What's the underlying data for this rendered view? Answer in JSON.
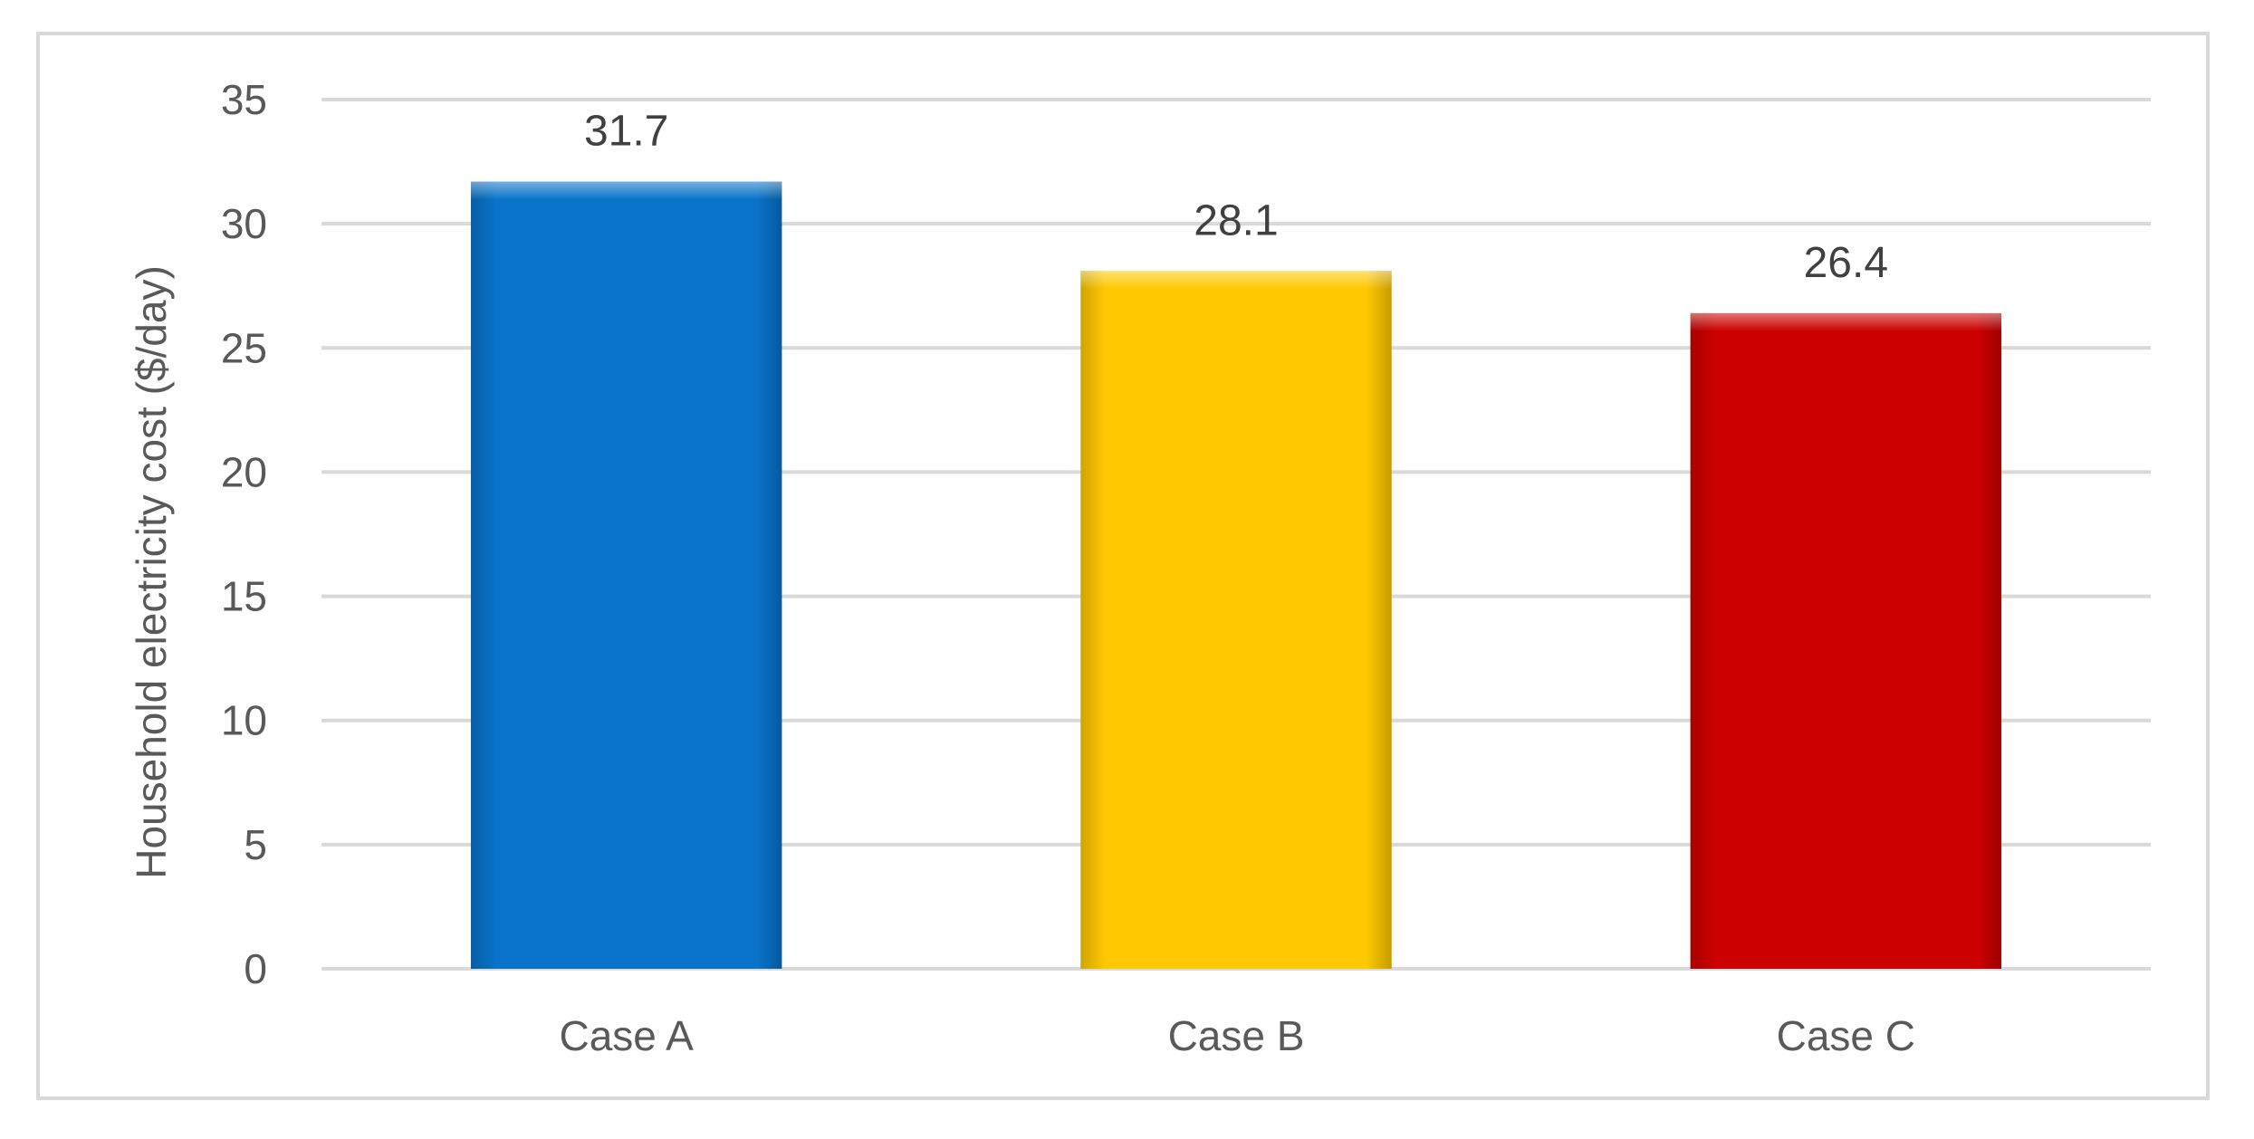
{
  "chart_data": {
    "type": "bar",
    "categories": [
      "Case A",
      "Case B",
      "Case C"
    ],
    "values": [
      31.7,
      28.1,
      26.4
    ],
    "data_labels": [
      "31.7",
      "28.1",
      "26.4"
    ],
    "bar_colors": [
      "#0873c9",
      "#ffc800",
      "#cc0000"
    ],
    "title": "",
    "xlabel": "",
    "ylabel": "Household electricity cost ($/day)",
    "ylim": [
      0,
      35
    ],
    "yticks": [
      0,
      5,
      10,
      15,
      20,
      25,
      30,
      35
    ],
    "ytick_labels": [
      "0",
      "5",
      "10",
      "15",
      "20",
      "25",
      "30",
      "35"
    ],
    "grid": true,
    "legend": "none"
  }
}
